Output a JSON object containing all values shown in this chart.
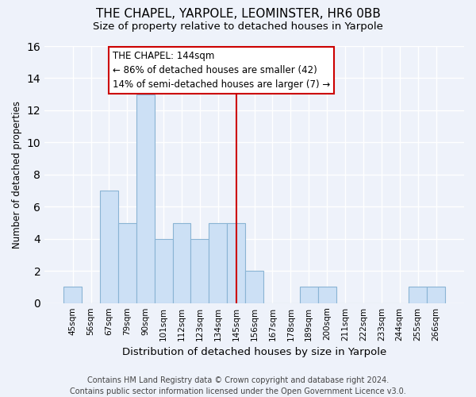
{
  "title": "THE CHAPEL, YARPOLE, LEOMINSTER, HR6 0BB",
  "subtitle": "Size of property relative to detached houses in Yarpole",
  "xlabel": "Distribution of detached houses by size in Yarpole",
  "ylabel": "Number of detached properties",
  "bar_labels": [
    "45sqm",
    "56sqm",
    "67sqm",
    "79sqm",
    "90sqm",
    "101sqm",
    "112sqm",
    "123sqm",
    "134sqm",
    "145sqm",
    "156sqm",
    "167sqm",
    "178sqm",
    "189sqm",
    "200sqm",
    "211sqm",
    "222sqm",
    "233sqm",
    "244sqm",
    "255sqm",
    "266sqm"
  ],
  "bar_values": [
    1,
    0,
    7,
    5,
    13,
    4,
    5,
    4,
    5,
    5,
    2,
    0,
    0,
    1,
    1,
    0,
    0,
    0,
    0,
    1,
    1
  ],
  "bar_color": "#cce0f5",
  "bar_edge_color": "#8ab4d4",
  "annotation_line_color": "#cc0000",
  "annotation_line_index": 9,
  "annotation_text_line1": "THE CHAPEL: 144sqm",
  "annotation_text_line2": "← 86% of detached houses are smaller (42)",
  "annotation_text_line3": "14% of semi-detached houses are larger (7) →",
  "annotation_box_color": "#ffffff",
  "annotation_box_edge_color": "#cc0000",
  "ylim": [
    0,
    16
  ],
  "yticks": [
    0,
    2,
    4,
    6,
    8,
    10,
    12,
    14,
    16
  ],
  "footer_text": "Contains HM Land Registry data © Crown copyright and database right 2024.\nContains public sector information licensed under the Open Government Licence v3.0.",
  "background_color": "#eef2fa",
  "grid_color": "#ffffff",
  "title_fontsize": 11,
  "subtitle_fontsize": 9.5,
  "xlabel_fontsize": 9.5,
  "ylabel_fontsize": 8.5,
  "annotation_fontsize": 8.5,
  "tick_fontsize": 7.5,
  "footer_fontsize": 7
}
